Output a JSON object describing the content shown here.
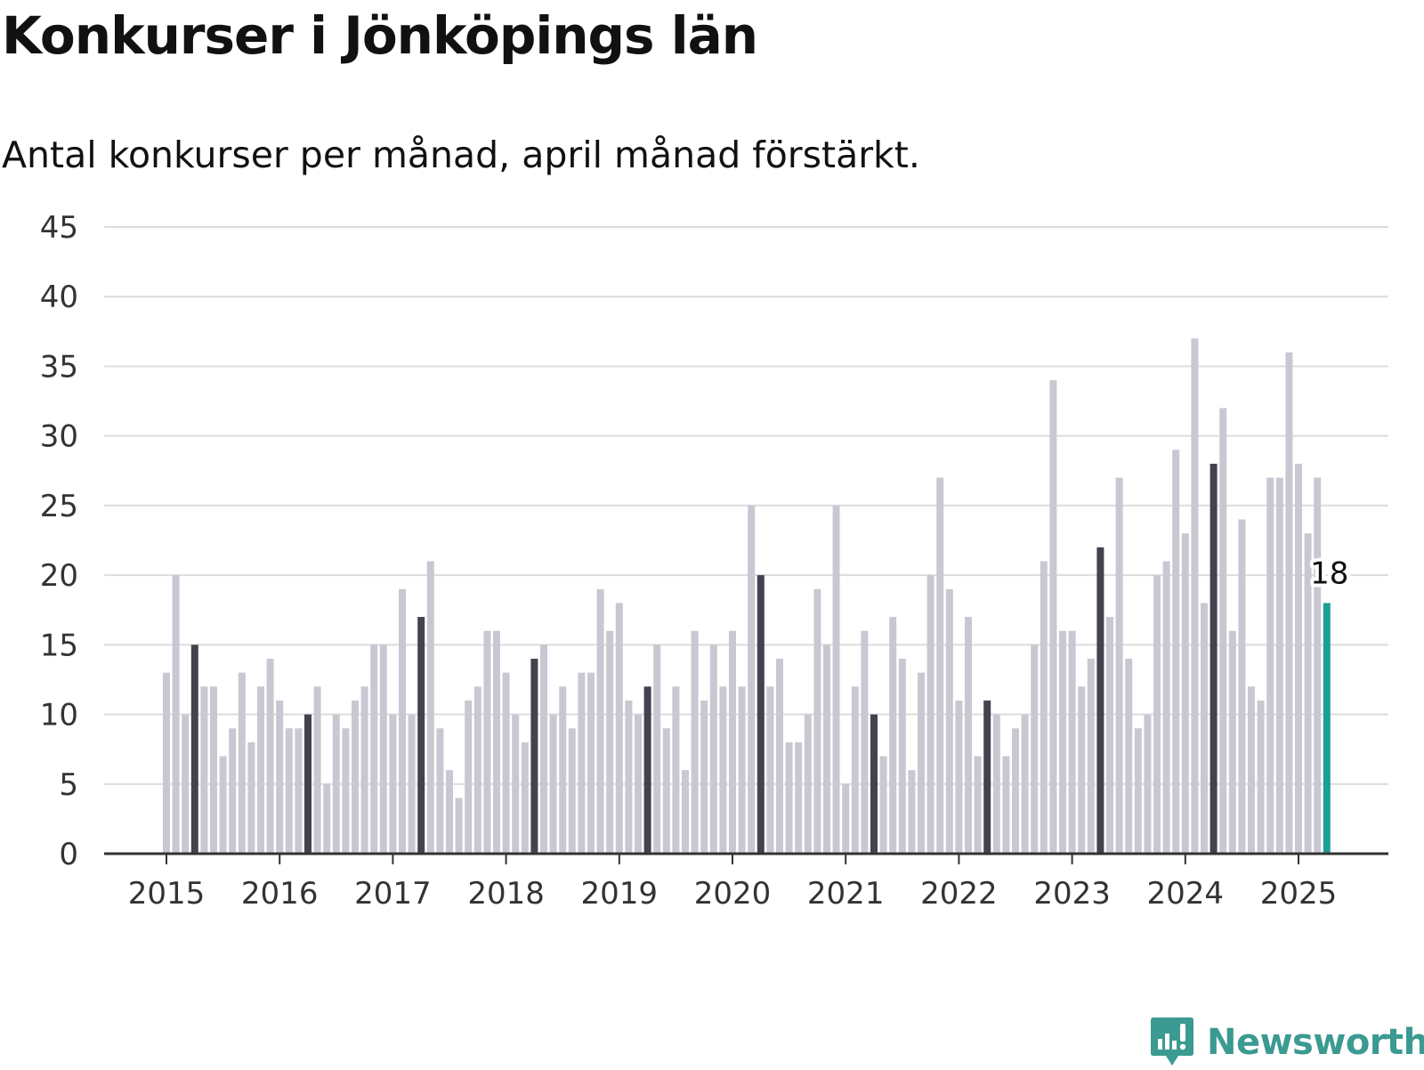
{
  "title": "Konkurser i Jönköpings län",
  "subtitle": "Antal konkurser per månad, april månad förstärkt.",
  "brand": {
    "name": "Newsworthy",
    "color": "#3b9a92",
    "icon": "newsworthy-logo-icon"
  },
  "colors": {
    "bar": "#c8c8d2",
    "highlight": "#43434f",
    "latest": "#1e9e95",
    "grid": "#dcdcdc",
    "axis": "#333333"
  },
  "chart_data": {
    "type": "bar",
    "title": "Konkurser i Jönköpings län",
    "subtitle": "Antal konkurser per månad, april månad förstärkt.",
    "xlabel": "",
    "ylabel": "",
    "ylim": [
      0,
      45
    ],
    "yticks": [
      0,
      5,
      10,
      15,
      20,
      25,
      30,
      35,
      40,
      45
    ],
    "xticks": [
      "2015",
      "2016",
      "2017",
      "2018",
      "2019",
      "2020",
      "2021",
      "2022",
      "2023",
      "2024",
      "2025"
    ],
    "grid": true,
    "start": "2015-01",
    "end": "2025-04",
    "frequency": "monthly",
    "highlight": "april",
    "values": [
      13,
      20,
      10,
      15,
      12,
      12,
      7,
      9,
      13,
      8,
      12,
      14,
      11,
      9,
      9,
      10,
      12,
      5,
      10,
      9,
      11,
      12,
      15,
      15,
      10,
      19,
      10,
      17,
      21,
      9,
      6,
      4,
      11,
      12,
      16,
      16,
      13,
      10,
      8,
      14,
      15,
      10,
      12,
      9,
      13,
      13,
      19,
      16,
      18,
      11,
      10,
      12,
      15,
      9,
      12,
      6,
      16,
      11,
      15,
      12,
      16,
      12,
      25,
      20,
      12,
      14,
      8,
      8,
      10,
      19,
      15,
      25,
      5,
      12,
      16,
      10,
      7,
      17,
      14,
      6,
      13,
      20,
      27,
      19,
      11,
      17,
      7,
      11,
      10,
      7,
      9,
      10,
      15,
      21,
      34,
      16,
      16,
      12,
      14,
      22,
      17,
      27,
      14,
      9,
      10,
      20,
      21,
      29,
      23,
      37,
      18,
      28,
      32,
      16,
      24,
      12,
      11,
      27,
      27,
      36,
      28,
      23,
      27,
      18
    ],
    "annotation": {
      "label": "18",
      "month": "2025-04",
      "value": 18
    }
  }
}
